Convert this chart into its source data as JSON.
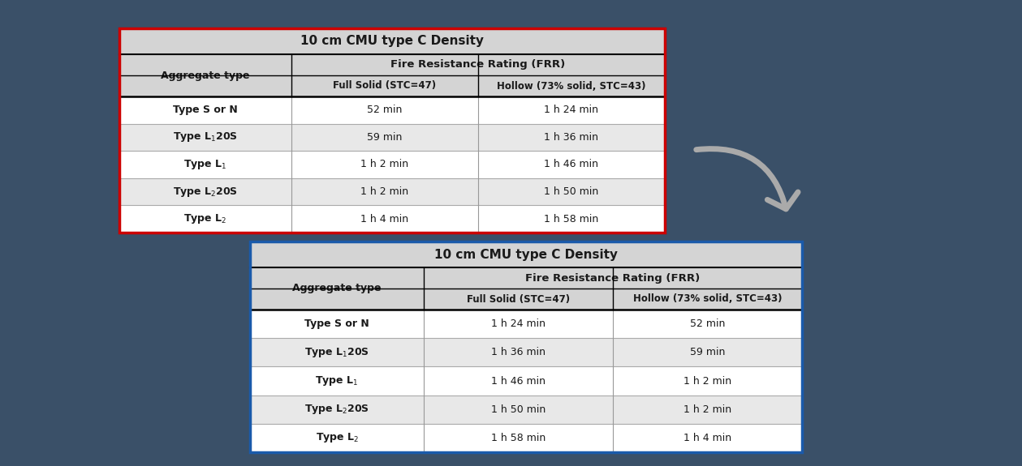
{
  "background_color": "#3a5068",
  "title": "10 cm CMU type C Density",
  "frr_header": "Fire Resistance Rating (FRR)",
  "col1_header": "Aggregate type",
  "col2_header": "Full Solid (STC=47)",
  "col3_header": "Hollow (73% solid, STC=43)",
  "table1_border_color": "#cc0000",
  "table2_border_color": "#1a5aaa",
  "header_bg": "#d4d4d4",
  "row_bg_light": "#ffffff",
  "row_bg_dark": "#e8e8e8",
  "cell_text_color": "#1a1a1a",
  "header_text_color": "#1a1a1a",
  "t1_vals_col2": [
    "52 min",
    "59 min",
    "1 h 2 min",
    "1 h 2 min",
    "1 h 4 min"
  ],
  "t1_vals_col3": [
    "1 h 24 min",
    "1 h 36 min",
    "1 h 46 min",
    "1 h 50 min",
    "1 h 58 min"
  ],
  "t2_vals_col2": [
    "1 h 24 min",
    "1 h 36 min",
    "1 h 46 min",
    "1 h 50 min",
    "1 h 58 min"
  ],
  "t2_vals_col3": [
    "52 min",
    "59 min",
    "1 h 2 min",
    "1 h 2 min",
    "1 h 4 min"
  ]
}
